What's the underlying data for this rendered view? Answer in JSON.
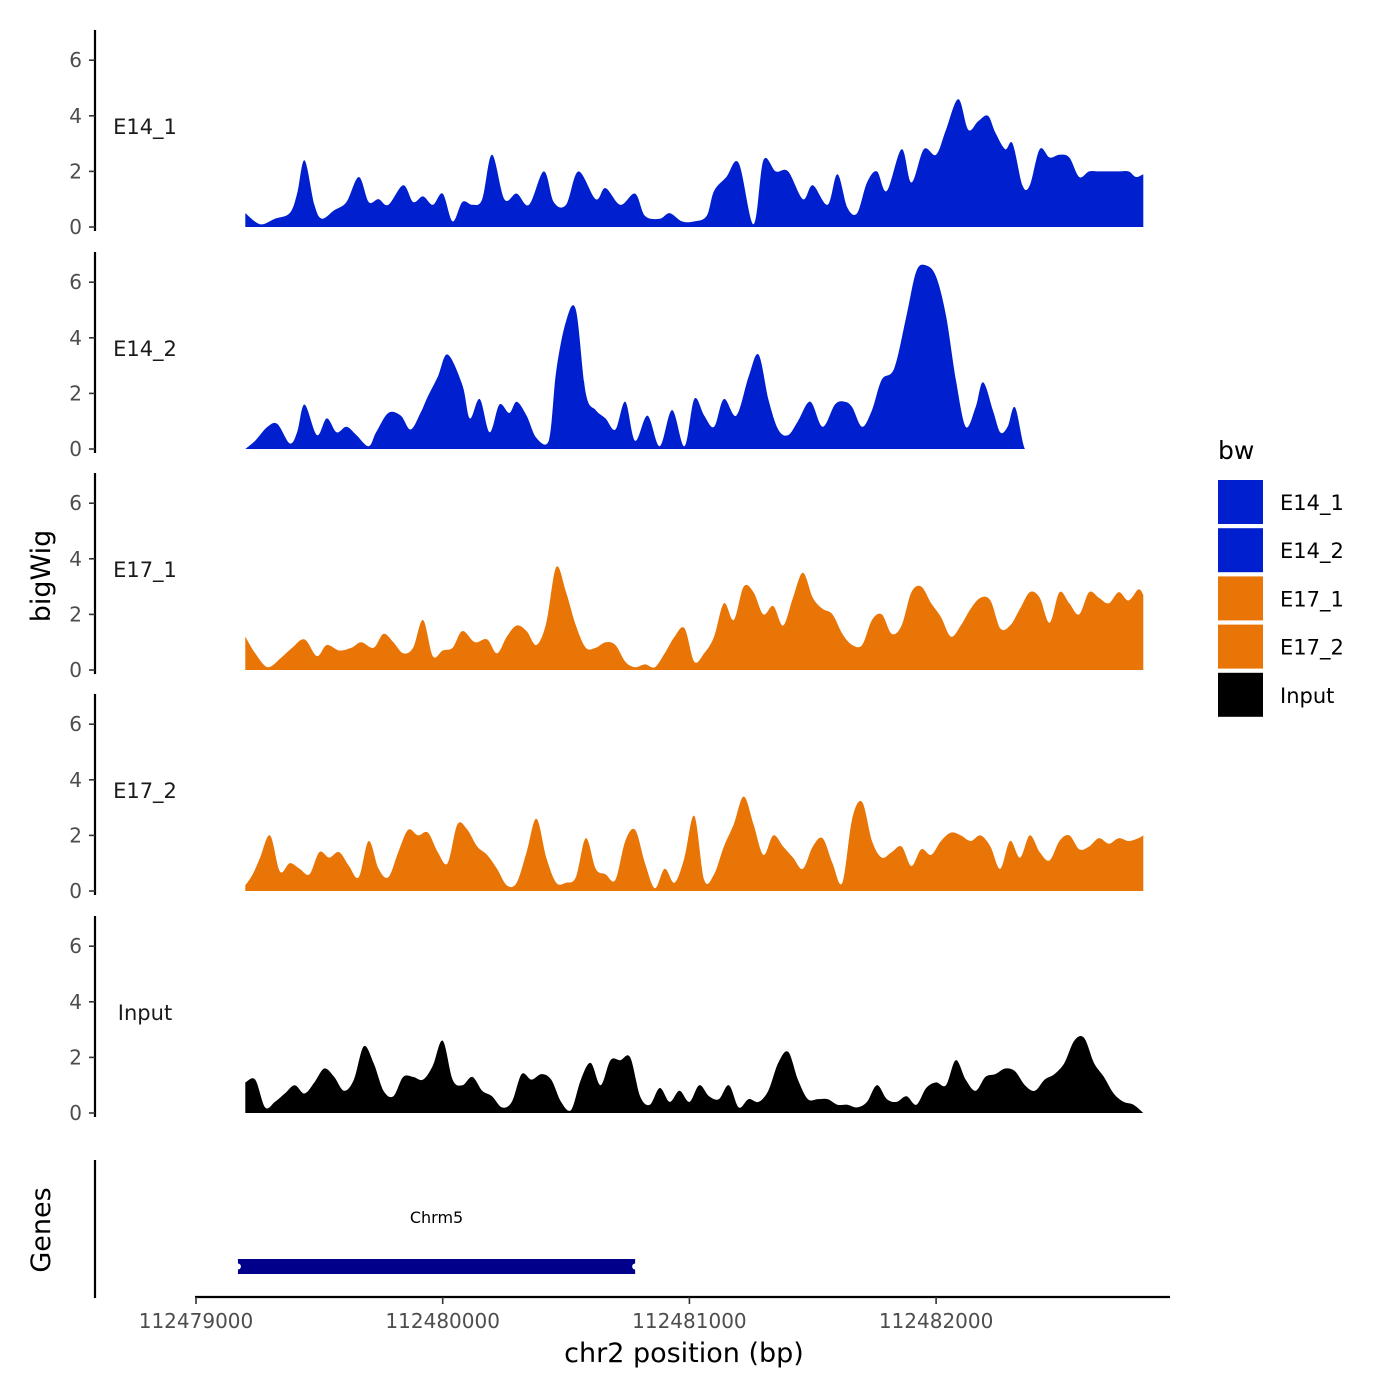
{
  "chart_data": {
    "type": "area",
    "ylabel": "bigWig",
    "xlabel": "chr2 position (bp)",
    "xlim": [
      112479000,
      112482940
    ],
    "ylim": [
      0,
      7
    ],
    "y_ticks": [
      0,
      2,
      4,
      6
    ],
    "x_ticks": [
      112479000,
      112480000,
      112481000,
      112482000
    ],
    "x_tick_labels": [
      "112479000",
      "112480000",
      "112481000",
      "112482000"
    ],
    "legend": {
      "title": "bw",
      "placement": "right",
      "entries": [
        {
          "label": "E14_1",
          "color": "#0020CF"
        },
        {
          "label": "E14_2",
          "color": "#0020CF"
        },
        {
          "label": "E17_1",
          "color": "#E87506"
        },
        {
          "label": "E17_2",
          "color": "#E87506"
        },
        {
          "label": "Input",
          "color": "#000000"
        }
      ]
    },
    "series": [
      {
        "name": "E14_1",
        "color": "#0020CF",
        "x": [
          112479200,
          112479260,
          112479320,
          112479380,
          112479410,
          112479440,
          112479480,
          112479510,
          112479560,
          112479610,
          112479660,
          112479700,
          112479740,
          112479780,
          112479840,
          112479880,
          112479920,
          112479960,
          112480000,
          112480040,
          112480080,
          112480120,
          112480160,
          112480200,
          112480250,
          112480300,
          112480350,
          112480410,
          112480450,
          112480500,
          112480550,
          112480620,
          112480660,
          112480720,
          112480780,
          112480820,
          112480880,
          112480920,
          112480970,
          112481020,
          112481070,
          112481100,
          112481150,
          112481200,
          112481260,
          112481300,
          112481350,
          112481400,
          112481460,
          112481500,
          112481560,
          112481600,
          112481640,
          112481680,
          112481720,
          112481760,
          112481800,
          112481860,
          112481900,
          112481950,
          112482000,
          112482040,
          112482090,
          112482130,
          112482170,
          112482210,
          112482240,
          112482280,
          112482310,
          112482350,
          112482380,
          112482420,
          112482460,
          112482500,
          112482540,
          112482580,
          112482620,
          112482660,
          112482700,
          112482740,
          112482780,
          112482810,
          112482840
        ],
        "values": [
          0.5,
          0.1,
          0.3,
          0.5,
          1.2,
          2.4,
          0.8,
          0.3,
          0.6,
          0.9,
          1.8,
          0.9,
          1.0,
          0.8,
          1.5,
          0.9,
          1.1,
          0.8,
          1.2,
          0.2,
          0.9,
          0.8,
          1.0,
          2.6,
          1.0,
          1.2,
          0.8,
          2.0,
          0.9,
          0.8,
          2.0,
          1.0,
          1.4,
          0.8,
          1.2,
          0.4,
          0.3,
          0.5,
          0.2,
          0.2,
          0.4,
          1.3,
          1.8,
          2.3,
          0.1,
          2.4,
          2.0,
          2.0,
          1.0,
          1.5,
          0.8,
          1.9,
          0.7,
          0.5,
          1.6,
          2.0,
          1.3,
          2.8,
          1.6,
          2.8,
          2.6,
          3.5,
          4.6,
          3.5,
          3.8,
          4.0,
          3.4,
          2.8,
          3.0,
          1.5,
          1.5,
          2.8,
          2.5,
          2.6,
          2.5,
          1.8,
          2.0,
          2.0,
          2.0,
          2.0,
          2.0,
          1.8,
          1.9
        ]
      },
      {
        "name": "E14_2",
        "color": "#0020CF",
        "x": [
          112479200,
          112479240,
          112479290,
          112479330,
          112479380,
          112479410,
          112479440,
          112479490,
          112479530,
          112479570,
          112479610,
          112479650,
          112479700,
          112479730,
          112479780,
          112479830,
          112479870,
          112479910,
          112479940,
          112479980,
          112480020,
          112480080,
          112480110,
          112480150,
          112480190,
          112480230,
          112480270,
          112480300,
          112480340,
          112480380,
          112480430,
          112480460,
          112480500,
          112480540,
          112480580,
          112480620,
          112480660,
          112480700,
          112480740,
          112480780,
          112480830,
          112480880,
          112480930,
          112480980,
          112481020,
          112481060,
          112481100,
          112481140,
          112481190,
          112481240,
          112481280,
          112481320,
          112481360,
          112481400,
          112481440,
          112481490,
          112481540,
          112481590,
          112481630,
          112481660,
          112481700,
          112481740,
          112481780,
          112481830,
          112481880,
          112481920,
          112481960,
          112482000,
          112482040,
          112482080,
          112482120,
          112482160,
          112482190,
          112482230,
          112482260,
          112482290,
          112482320,
          112482360,
          112482400,
          112482440,
          112482480,
          112482520,
          112482560,
          112482600,
          112482650,
          112482700,
          112482740,
          112482790,
          112482820,
          112482840
        ],
        "values": [
          0.0,
          0.3,
          0.8,
          0.9,
          0.2,
          0.6,
          1.6,
          0.5,
          1.1,
          0.6,
          0.8,
          0.5,
          0.1,
          0.6,
          1.3,
          1.2,
          0.7,
          1.3,
          1.9,
          2.6,
          3.4,
          2.3,
          1.1,
          1.8,
          0.6,
          1.6,
          1.3,
          1.7,
          1.2,
          0.4,
          0.3,
          2.8,
          4.6,
          5.0,
          2.0,
          1.4,
          1.1,
          0.7,
          1.7,
          0.3,
          1.2,
          0.1,
          1.4,
          0.1,
          1.8,
          1.2,
          0.8,
          1.8,
          1.2,
          2.6,
          3.4,
          1.8,
          0.7,
          0.5,
          1.0,
          1.7,
          0.8,
          1.6,
          1.7,
          1.5,
          0.8,
          1.4,
          2.5,
          2.9,
          4.8,
          6.4,
          6.6,
          6.2,
          4.8,
          2.5,
          0.8,
          1.5,
          2.4,
          1.4,
          0.6,
          0.8,
          1.5,
          0.0,
          0.0,
          0.0,
          0.0,
          0.0,
          0.0,
          0.0,
          0.0,
          0.0,
          0.0,
          0.0,
          0.0,
          0.0
        ]
      },
      {
        "name": "E17_1",
        "color": "#E87506",
        "x": [
          112479200,
          112479240,
          112479290,
          112479340,
          112479390,
          112479440,
          112479490,
          112479530,
          112479580,
          112479630,
          112479670,
          112479720,
          112479760,
          112479800,
          112479840,
          112479880,
          112479920,
          112479960,
          112480000,
          112480040,
          112480080,
          112480130,
          112480180,
          112480220,
          112480260,
          112480300,
          112480340,
          112480380,
          112480420,
          112480460,
          112480500,
          112480540,
          112480580,
          112480620,
          112480660,
          112480700,
          112480740,
          112480780,
          112480820,
          112480860,
          112480900,
          112480940,
          112480980,
          112481020,
          112481060,
          112481100,
          112481140,
          112481180,
          112481220,
          112481260,
          112481300,
          112481340,
          112481380,
          112481420,
          112481460,
          112481500,
          112481540,
          112481580,
          112481620,
          112481660,
          112481700,
          112481740,
          112481780,
          112481820,
          112481860,
          112481900,
          112481940,
          112481980,
          112482020,
          112482060,
          112482100,
          112482140,
          112482180,
          112482220,
          112482260,
          112482300,
          112482340,
          112482380,
          112482420,
          112482460,
          112482500,
          112482540,
          112482580,
          112482620,
          112482660,
          112482700,
          112482740,
          112482780,
          112482820,
          112482840
        ],
        "values": [
          1.2,
          0.6,
          0.1,
          0.4,
          0.8,
          1.1,
          0.5,
          0.9,
          0.7,
          0.8,
          1.0,
          0.8,
          1.3,
          1.0,
          0.6,
          0.8,
          1.8,
          0.5,
          0.7,
          0.8,
          1.4,
          1.0,
          1.1,
          0.6,
          1.2,
          1.6,
          1.4,
          0.9,
          1.7,
          3.7,
          2.8,
          1.6,
          0.8,
          0.8,
          1.0,
          0.9,
          0.3,
          0.1,
          0.2,
          0.1,
          0.6,
          1.2,
          1.5,
          0.3,
          0.6,
          1.2,
          2.4,
          1.8,
          3.0,
          2.8,
          2.0,
          2.3,
          1.6,
          2.6,
          3.5,
          2.6,
          2.2,
          2.0,
          1.3,
          0.9,
          0.9,
          1.8,
          2.0,
          1.3,
          1.6,
          2.8,
          3.0,
          2.4,
          1.9,
          1.2,
          1.6,
          2.2,
          2.6,
          2.5,
          1.5,
          1.6,
          2.2,
          2.8,
          2.6,
          1.7,
          2.8,
          2.4,
          2.0,
          2.8,
          2.6,
          2.4,
          2.8,
          2.5,
          2.9,
          2.7
        ]
      },
      {
        "name": "E17_2",
        "color": "#E87506",
        "x": [
          112479200,
          112479230,
          112479260,
          112479300,
          112479340,
          112479380,
          112479420,
          112479460,
          112479500,
          112479540,
          112479580,
          112479620,
          112479660,
          112479700,
          112479740,
          112479780,
          112479820,
          112479860,
          112479900,
          112479940,
          112479980,
          112480020,
          112480060,
          112480100,
          112480140,
          112480180,
          112480220,
          112480260,
          112480300,
          112480340,
          112480380,
          112480420,
          112480460,
          112480500,
          112480540,
          112480580,
          112480620,
          112480660,
          112480700,
          112480740,
          112480780,
          112480820,
          112480860,
          112480900,
          112480940,
          112480980,
          112481020,
          112481060,
          112481100,
          112481140,
          112481180,
          112481220,
          112481260,
          112481300,
          112481340,
          112481380,
          112481420,
          112481460,
          112481500,
          112481540,
          112481580,
          112481620,
          112481660,
          112481700,
          112481740,
          112481780,
          112481820,
          112481860,
          112481900,
          112481940,
          112481980,
          112482020,
          112482060,
          112482100,
          112482140,
          112482180,
          112482220,
          112482260,
          112482300,
          112482340,
          112482380,
          112482420,
          112482460,
          112482500,
          112482540,
          112482580,
          112482620,
          112482660,
          112482700,
          112482740,
          112482780,
          112482820,
          112482840
        ],
        "values": [
          0.2,
          0.6,
          1.2,
          2.0,
          0.7,
          1.0,
          0.8,
          0.6,
          1.4,
          1.2,
          1.4,
          0.9,
          0.5,
          1.8,
          0.8,
          0.5,
          1.4,
          2.2,
          2.0,
          2.1,
          1.4,
          1.0,
          2.4,
          2.2,
          1.6,
          1.3,
          0.8,
          0.2,
          0.3,
          1.4,
          2.6,
          1.2,
          0.3,
          0.3,
          0.5,
          1.9,
          0.8,
          0.6,
          0.4,
          1.8,
          2.2,
          1.0,
          0.1,
          0.8,
          0.3,
          1.2,
          2.7,
          0.4,
          0.6,
          1.6,
          2.4,
          3.4,
          2.4,
          1.3,
          2.0,
          1.6,
          1.2,
          0.8,
          1.6,
          1.9,
          1.0,
          0.3,
          2.6,
          3.2,
          1.8,
          1.2,
          1.4,
          1.6,
          0.9,
          1.5,
          1.3,
          1.8,
          2.1,
          2.0,
          1.8,
          2.0,
          1.6,
          0.8,
          1.8,
          1.2,
          2.0,
          1.4,
          1.1,
          1.8,
          2.0,
          1.5,
          1.6,
          1.9,
          1.7,
          1.9,
          1.8,
          1.9,
          2.0
        ]
      },
      {
        "name": "Input",
        "color": "#000000",
        "x": [
          112479200,
          112479240,
          112479280,
          112479320,
          112479360,
          112479400,
          112479440,
          112479480,
          112479520,
          112479560,
          112479600,
          112479640,
          112479680,
          112479720,
          112479760,
          112479800,
          112479840,
          112479880,
          112479920,
          112479960,
          112480000,
          112480040,
          112480080,
          112480120,
          112480160,
          112480200,
          112480240,
          112480280,
          112480320,
          112480360,
          112480400,
          112480440,
          112480480,
          112480520,
          112480560,
          112480600,
          112480640,
          112480680,
          112480720,
          112480760,
          112480800,
          112480840,
          112480880,
          112480920,
          112480960,
          112481000,
          112481040,
          112481080,
          112481120,
          112481160,
          112481200,
          112481240,
          112481280,
          112481320,
          112481360,
          112481400,
          112481440,
          112481480,
          112481520,
          112481560,
          112481600,
          112481640,
          112481680,
          112481720,
          112481760,
          112481800,
          112481840,
          112481880,
          112481920,
          112481960,
          112482000,
          112482040,
          112482080,
          112482120,
          112482160,
          112482200,
          112482240,
          112482280,
          112482320,
          112482360,
          112482400,
          112482440,
          112482480,
          112482520,
          112482560,
          112482600,
          112482640,
          112482680,
          112482720,
          112482760,
          112482800,
          112482840
        ],
        "values": [
          1.1,
          1.2,
          0.2,
          0.4,
          0.7,
          1.0,
          0.7,
          1.1,
          1.6,
          1.3,
          0.8,
          1.2,
          2.4,
          1.8,
          0.8,
          0.6,
          1.3,
          1.3,
          1.2,
          1.7,
          2.6,
          1.2,
          1.0,
          1.3,
          0.8,
          0.6,
          0.2,
          0.4,
          1.4,
          1.2,
          1.4,
          1.2,
          0.4,
          0.1,
          1.2,
          1.8,
          1.0,
          1.9,
          1.9,
          2.0,
          0.6,
          0.3,
          0.9,
          0.4,
          0.8,
          0.4,
          1.0,
          0.6,
          0.5,
          1.0,
          0.2,
          0.5,
          0.4,
          0.8,
          1.8,
          2.2,
          1.2,
          0.5,
          0.5,
          0.5,
          0.3,
          0.3,
          0.2,
          0.4,
          1.0,
          0.5,
          0.4,
          0.6,
          0.3,
          0.9,
          1.1,
          1.0,
          1.9,
          1.2,
          0.8,
          1.3,
          1.4,
          1.6,
          1.5,
          1.0,
          0.8,
          1.2,
          1.4,
          1.8,
          2.6,
          2.7,
          1.8,
          1.3,
          0.7,
          0.4,
          0.3,
          0.0
        ]
      }
    ],
    "genes": {
      "label": "Genes",
      "features": [
        {
          "name": "Chrm5",
          "start": 112479170,
          "end": 112480780,
          "strand": "+",
          "color": "#00008B"
        }
      ]
    }
  }
}
